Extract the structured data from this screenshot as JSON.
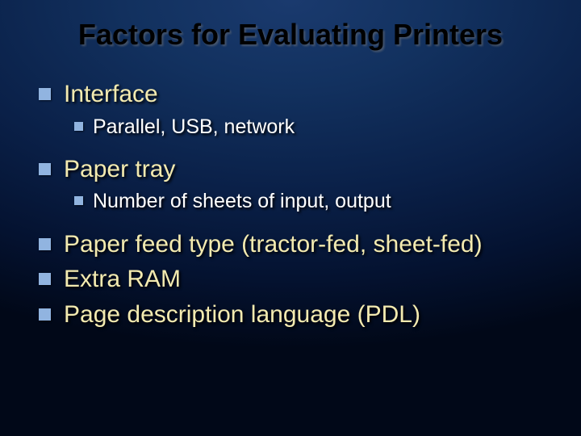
{
  "slide": {
    "title": "Factors for Evaluating Printers",
    "title_fontsize": 36,
    "title_color": "#000000",
    "background_gradient": [
      "#1a3a6e",
      "#12315f",
      "#0a2048",
      "#041230",
      "#010818"
    ],
    "bullet_color": "#91b4e0",
    "level1_text_color": "#f3eab0",
    "level2_text_color": "#ffffff",
    "level1_fontsize": 30,
    "level2_fontsize": 25,
    "level1_bullet_size": 15,
    "level2_bullet_size": 11,
    "items": [
      {
        "label": "Interface",
        "children": [
          {
            "label": "Parallel, USB, network"
          }
        ]
      },
      {
        "label": "Paper tray",
        "children": [
          {
            "label": "Number of sheets of input, output"
          }
        ]
      },
      {
        "label": "Paper feed type (tractor-fed, sheet-fed)",
        "children": []
      },
      {
        "label": "Extra RAM",
        "children": []
      },
      {
        "label": "Page description language (PDL)",
        "children": []
      }
    ]
  }
}
